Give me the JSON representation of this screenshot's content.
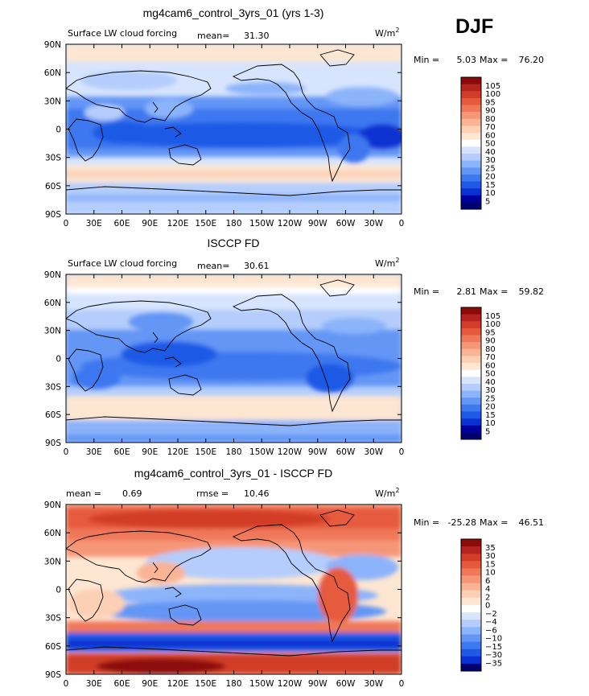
{
  "season": "DJF",
  "x_ticks": [
    "0",
    "30E",
    "60E",
    "90E",
    "120E",
    "150E",
    "180",
    "150W",
    "120W",
    "90W",
    "60W",
    "30W",
    "0"
  ],
  "y_ticks": [
    "90N",
    "60N",
    "30N",
    "0",
    "30S",
    "60S",
    "90S"
  ],
  "colors": {
    "fc": [
      "#00006e",
      "#0000a0",
      "#0a32d2",
      "#1e5ae6",
      "#3c78f0",
      "#6496f5",
      "#8cb4fa",
      "#b4cdfc",
      "#d7e4fd",
      "#ffffff",
      "#fde6d2",
      "#fcd0b4",
      "#f9b496",
      "#f69678",
      "#f0785a",
      "#e65a3c",
      "#d23c28",
      "#b4231e",
      "#8c0a0a"
    ],
    "diff": [
      "#00006e",
      "#0a32d2",
      "#1e5ae6",
      "#3c78f0",
      "#6496f5",
      "#8cb4fa",
      "#b4cdfc",
      "#d7e4fd",
      "#ffffff",
      "#fde6d2",
      "#fcd0b4",
      "#f9b496",
      "#f69678",
      "#f0785a",
      "#e65a3c",
      "#d23c28",
      "#b4231e",
      "#8c0a0a"
    ]
  },
  "chart_data": [
    {
      "type": "heatmap",
      "title": "mg4cam6_control_3yrs_01 (yrs 1-3)",
      "left_label": "Surface LW cloud forcing",
      "mean_label": "mean=",
      "mean": "31.30",
      "units": "W/m",
      "units_exp": "2",
      "min_label": "Min =",
      "min": "5.03",
      "max_label": "Max =",
      "max": "76.20",
      "colorbar": "fc",
      "colorbar_levels": [
        "105",
        "100",
        "95",
        "90",
        "80",
        "70",
        "60",
        "50",
        "40",
        "30",
        "25",
        "20",
        "15",
        "10",
        "5"
      ],
      "xlim": [
        0,
        360
      ],
      "ylim": [
        -90,
        90
      ]
    },
    {
      "type": "heatmap",
      "title": "ISCCP FD",
      "left_label": "Surface LW cloud forcing",
      "mean_label": "mean=",
      "mean": "30.61",
      "units": "W/m",
      "units_exp": "2",
      "min_label": "Min =",
      "min": "2.81",
      "max_label": "Max =",
      "max": "59.82",
      "colorbar": "fc",
      "colorbar_levels": [
        "105",
        "100",
        "95",
        "90",
        "80",
        "70",
        "60",
        "50",
        "40",
        "30",
        "25",
        "20",
        "15",
        "10",
        "5"
      ],
      "xlim": [
        0,
        360
      ],
      "ylim": [
        -90,
        90
      ]
    },
    {
      "type": "heatmap",
      "title": "mg4cam6_control_3yrs_01 - ISCCP FD",
      "left_label": "mean =",
      "mean_label": "",
      "mean": "0.69",
      "rmse_label": "rmse =",
      "rmse": "10.46",
      "units": "W/m",
      "units_exp": "2",
      "min_label": "Min =",
      "min": "-25.28",
      "max_label": "Max =",
      "max": "46.51",
      "colorbar": "diff",
      "colorbar_levels": [
        "35",
        "30",
        "15",
        "10",
        "6",
        "4",
        "2",
        "0",
        "−2",
        "−4",
        "−6",
        "−10",
        "−15",
        "−30",
        "−35"
      ],
      "xlim": [
        0,
        360
      ],
      "ylim": [
        -90,
        90
      ]
    }
  ]
}
